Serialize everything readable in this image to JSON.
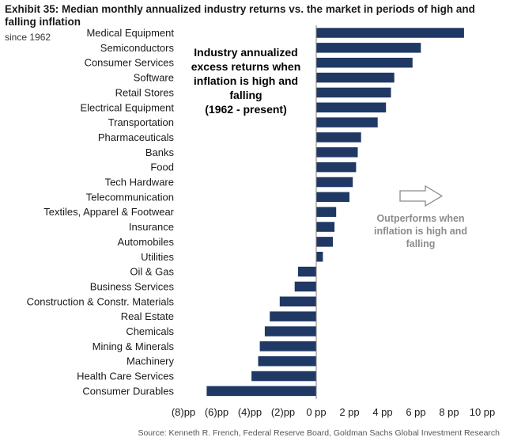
{
  "header": {
    "title": "Exhibit 35: Median monthly annualized industry returns vs. the market in periods of high and falling inflation",
    "subtitle": "since 1962"
  },
  "footer": {
    "source": "Source: Kenneth R. French, Federal Reserve Board, Goldman Sachs Global Investment Research"
  },
  "chart_data": {
    "type": "bar",
    "orientation": "horizontal",
    "title": "Median monthly annualized industry returns vs. the market in periods of high and falling inflation",
    "xlabel": "",
    "ylabel": "",
    "xlim": [
      -8,
      10
    ],
    "unit": "pp",
    "categories": [
      "Medical Equipment",
      "Semiconductors",
      "Consumer Services",
      "Software",
      "Retail Stores",
      "Electrical Equipment",
      "Transportation",
      "Pharmaceuticals",
      "Banks",
      "Food",
      "Tech Hardware",
      "Telecommunication",
      "Textiles, Apparel & Footwear",
      "Insurance",
      "Automobiles",
      "Utilities",
      "Oil & Gas",
      "Business Services",
      "Construction & Constr. Materials",
      "Real Estate",
      "Chemicals",
      "Mining & Minerals",
      "Machinery",
      "Health Care Services",
      "Consumer Durables"
    ],
    "values": [
      8.9,
      6.3,
      5.8,
      4.7,
      4.5,
      4.2,
      3.7,
      2.7,
      2.5,
      2.4,
      2.2,
      2.0,
      1.2,
      1.1,
      1.0,
      0.4,
      -1.1,
      -1.3,
      -2.2,
      -2.8,
      -3.1,
      -3.4,
      -3.5,
      -3.9,
      -6.6
    ],
    "bar_color": "#1f3864",
    "ticks": [
      -8,
      -6,
      -4,
      -2,
      0,
      2,
      4,
      6,
      8,
      10
    ],
    "tick_labels": [
      "(8)pp",
      "(6)pp",
      "(4)pp",
      "(2)pp",
      "0 pp",
      "2 pp",
      "4 pp",
      "6 pp",
      "8 pp",
      "10 pp"
    ],
    "annotation": {
      "lines": [
        "Industry annualized",
        "excess returns when",
        "inflation is high and",
        "falling",
        "(1962 - present)"
      ]
    },
    "note": {
      "icon": "right-arrow-icon",
      "lines": [
        "Outperforms when",
        "inflation is high and",
        "falling"
      ]
    }
  }
}
